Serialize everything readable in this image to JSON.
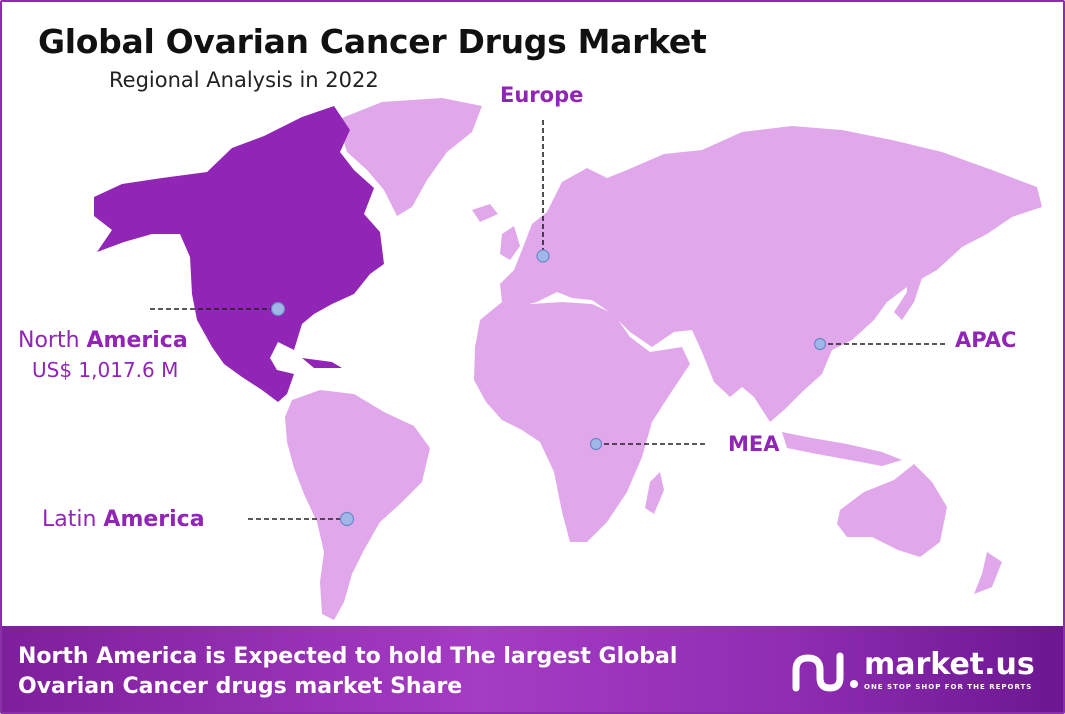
{
  "title": "Global Ovarian Cancer Drugs Market",
  "subtitle": "Regional Analysis in 2022",
  "regions": {
    "north_america": {
      "label_light": "North ",
      "label_bold": "America",
      "value": "US$ 1,017.6 M"
    },
    "latin_america": {
      "label_light": "Latin ",
      "label_bold": "America"
    },
    "europe": {
      "label": "Europe"
    },
    "apac": {
      "label": "APAC"
    },
    "mea": {
      "label": "MEA"
    }
  },
  "banner": {
    "line1": "North America is Expected to hold The largest Global",
    "line2": "Ovarian Cancer drugs market Share"
  },
  "brand": {
    "name": "market.us",
    "tagline": "ONE STOP SHOP FOR THE REPORTS"
  },
  "colors": {
    "highlight": "#9125b6",
    "other_regions": "#e0a8ea",
    "banner": "#9a32bd",
    "marker": "#9fb8e8"
  }
}
